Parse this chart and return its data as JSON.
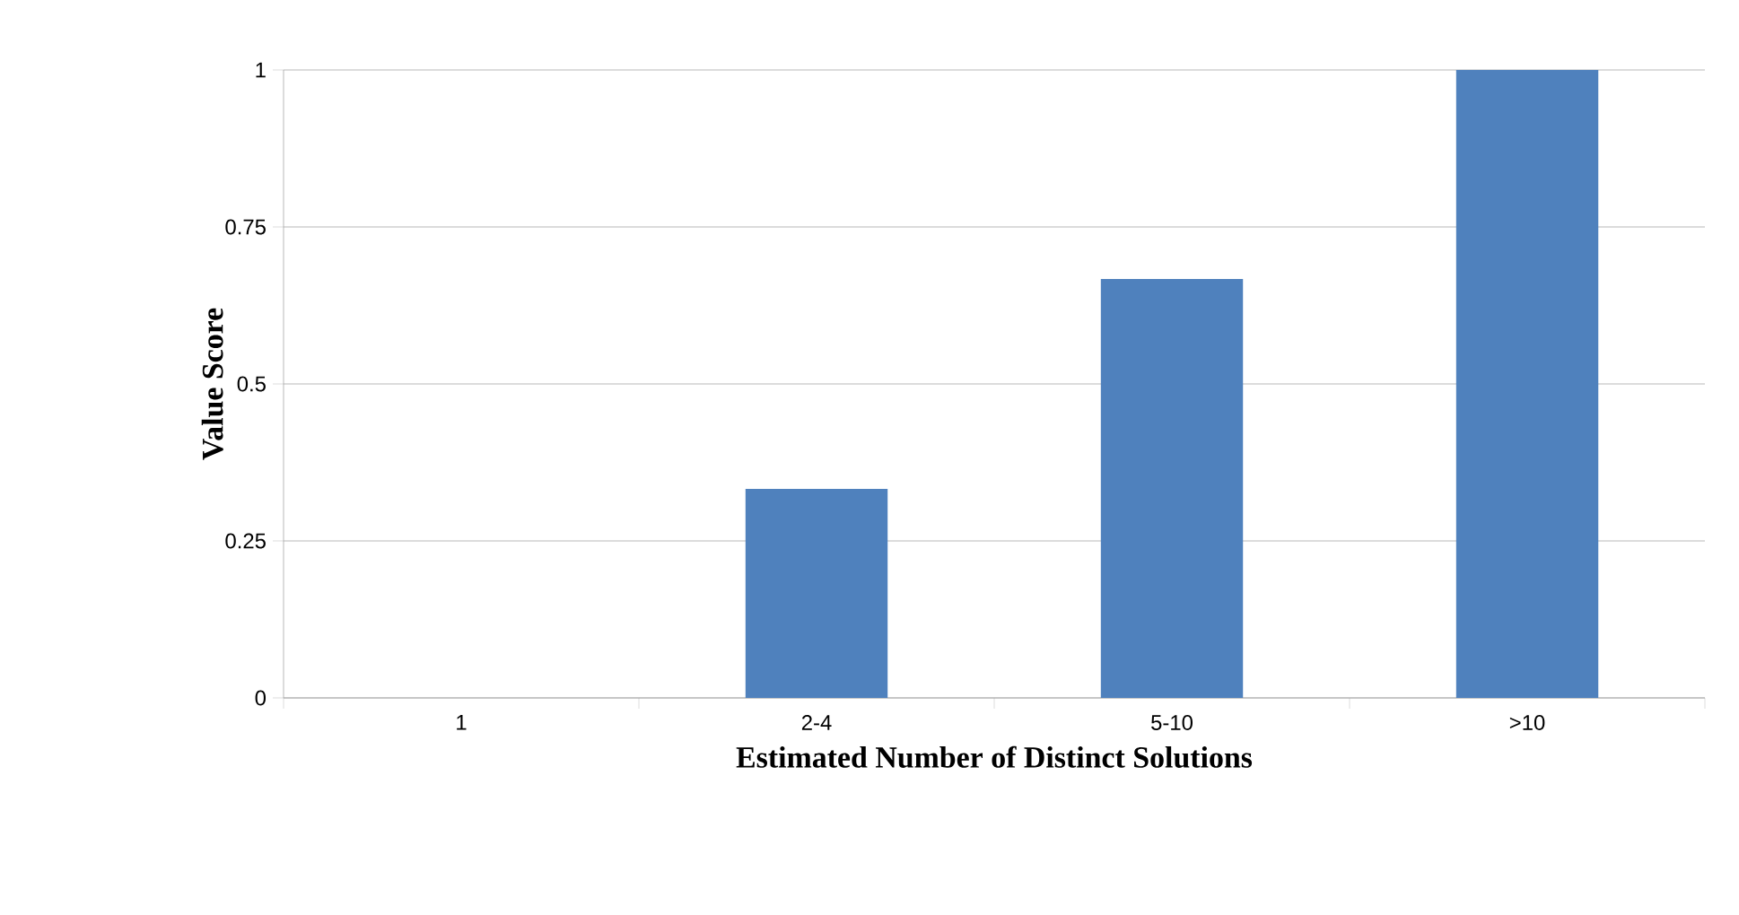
{
  "chart_data": {
    "type": "bar",
    "xlabel": "Estimated Number of Distinct Solutions",
    "ylabel": "Value Score",
    "categories": [
      "1",
      "2-4",
      "5-10",
      ">10"
    ],
    "values": [
      0,
      0.333,
      0.667,
      1
    ],
    "color": "#4f81bd",
    "ylim": [
      0,
      1
    ],
    "yticks": [
      0,
      0.25,
      0.5,
      0.75,
      1
    ],
    "grid": "y"
  }
}
